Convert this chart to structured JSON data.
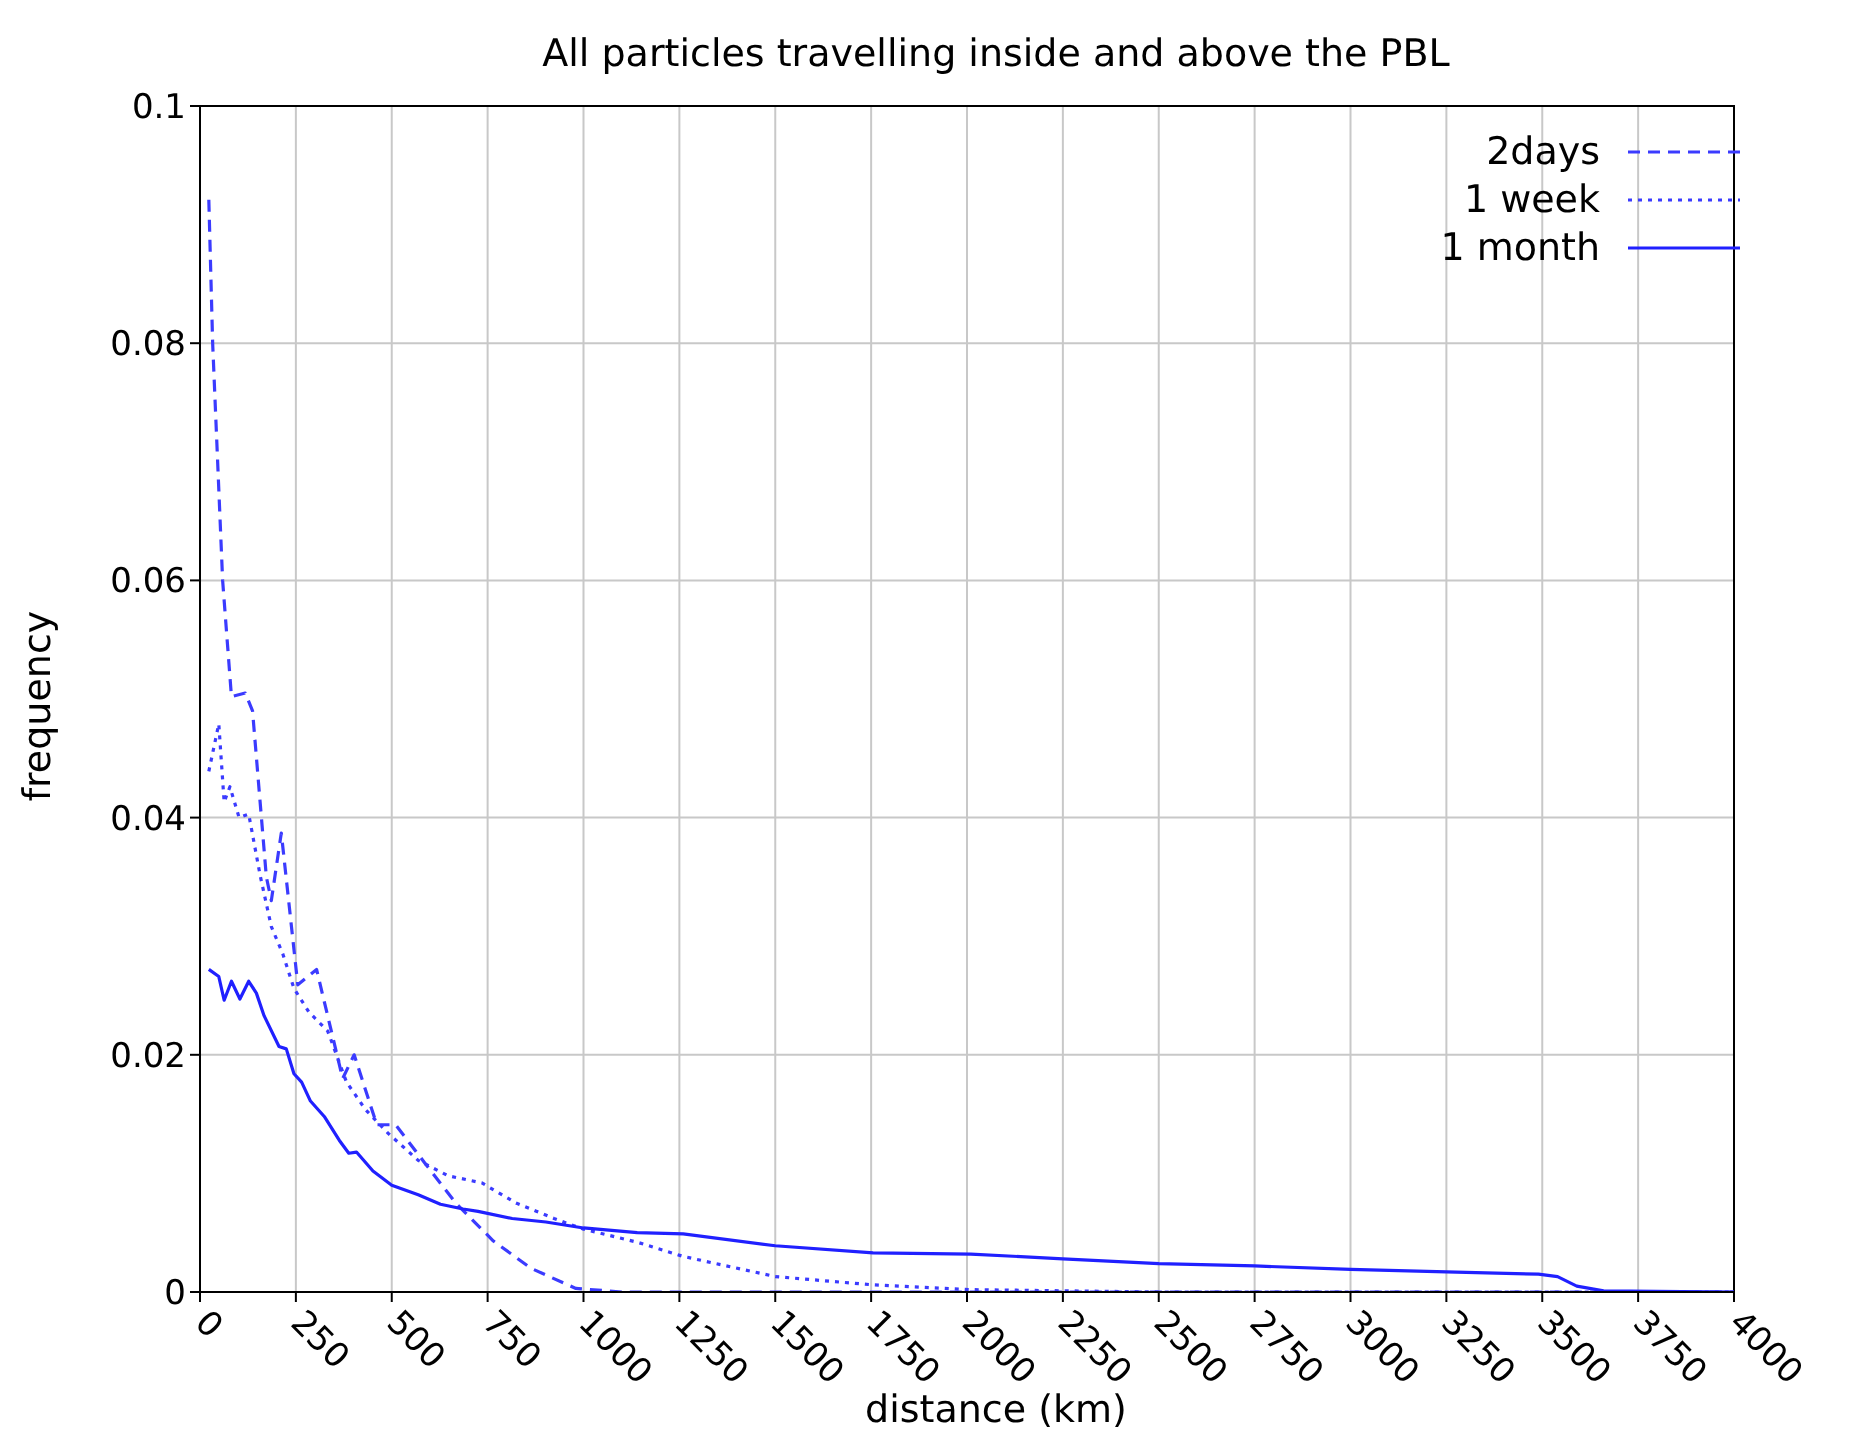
{
  "chart_data": {
    "type": "line",
    "title": "All particles travelling inside and above the PBL",
    "xlabel": "distance (km)",
    "ylabel": "frequency",
    "xlim": [
      0,
      4000
    ],
    "xticks": [
      0,
      250,
      500,
      750,
      1000,
      1250,
      1500,
      1750,
      2000,
      2250,
      2500,
      2750,
      3000,
      3250,
      3500,
      3750,
      4000
    ],
    "ylim": [
      0,
      0.1
    ],
    "yticks": [
      0,
      0.02,
      0.04,
      0.06,
      0.08,
      {
        "value": 0.1,
        "label": "0.1"
      }
    ],
    "grid": true,
    "legend": "top right",
    "marker": "none",
    "series": [
      {
        "name": "2days",
        "color": "#3b3bff",
        "line_style": "dashed",
        "x": [
          23,
          33,
          59,
          82,
          118,
          137,
          173,
          186,
          212,
          255,
          304,
          372,
          402,
          461,
          510,
          588,
          667,
          765,
          863,
          980,
          1100,
          1500,
          2000,
          2500,
          3000,
          3500,
          4000
        ],
        "values": [
          0.0921,
          0.08,
          0.06,
          0.0502,
          0.0505,
          0.049,
          0.035,
          0.033,
          0.0387,
          0.0259,
          0.0272,
          0.018,
          0.02,
          0.0141,
          0.0141,
          0.0108,
          0.0075,
          0.0043,
          0.002,
          0.0003,
          0,
          0,
          0,
          0,
          0,
          0,
          0
        ]
      },
      {
        "name": "1 week",
        "color": "#3b3bff",
        "line_style": "dotted",
        "x": [
          23,
          49,
          63,
          78,
          102,
          127,
          157,
          186,
          216,
          245,
          284,
          333,
          382,
          431,
          490,
          569,
          647,
          735,
          824,
          923,
          1000,
          1140,
          1260,
          1500,
          1755,
          2010,
          2500,
          3000,
          3500,
          4000
        ],
        "values": [
          0.0439,
          0.0479,
          0.0413,
          0.0426,
          0.04,
          0.0403,
          0.0351,
          0.0308,
          0.0285,
          0.0256,
          0.0236,
          0.022,
          0.0177,
          0.0154,
          0.0134,
          0.0111,
          0.0098,
          0.0092,
          0.0075,
          0.0062,
          0.0053,
          0.0042,
          0.003,
          0.0013,
          0.0006,
          0.0002,
          0,
          0,
          0,
          0
        ]
      },
      {
        "name": "1 month",
        "color": "#2020ff",
        "line_style": "solid",
        "x": [
          23,
          49,
          63,
          82,
          104,
          127,
          147,
          167,
          206,
          225,
          245,
          265,
          288,
          324,
          363,
          388,
          408,
          451,
          500,
          569,
          627,
          686,
          725,
          814,
          902,
          1000,
          1140,
          1260,
          1500,
          1755,
          2010,
          2250,
          2500,
          2750,
          3000,
          3250,
          3490,
          3540,
          3590,
          3660,
          4000
        ],
        "values": [
          0.0272,
          0.0266,
          0.0246,
          0.0262,
          0.0247,
          0.0262,
          0.0252,
          0.0233,
          0.0207,
          0.0205,
          0.0184,
          0.0177,
          0.0161,
          0.0148,
          0.0128,
          0.0117,
          0.0118,
          0.0102,
          0.009,
          0.0082,
          0.0074,
          0.007,
          0.0068,
          0.0062,
          0.0059,
          0.0054,
          0.005,
          0.0049,
          0.0039,
          0.0033,
          0.0032,
          0.0028,
          0.0024,
          0.0022,
          0.0019,
          0.0017,
          0.0015,
          0.0013,
          0.0005,
          0.0001,
          0
        ]
      }
    ]
  }
}
